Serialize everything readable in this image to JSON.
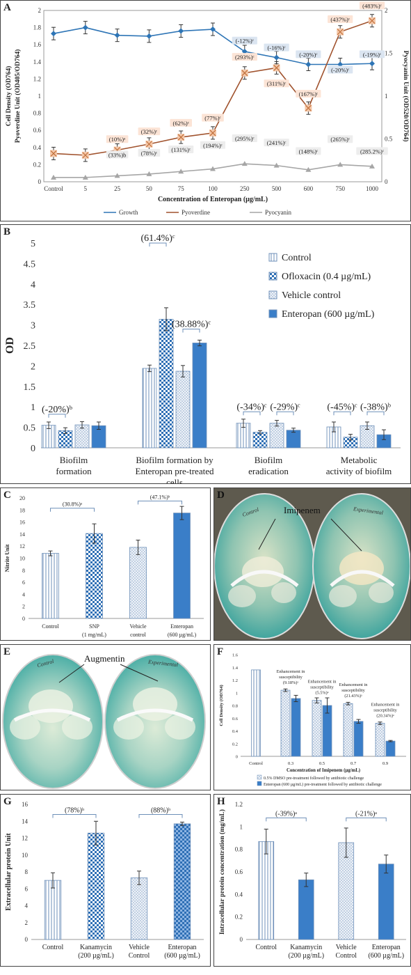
{
  "panels": {
    "A": {
      "label": "A",
      "chart_data": {
        "type": "line",
        "categories": [
          "Control",
          "5",
          "25",
          "50",
          "75",
          "100",
          "250",
          "500",
          "600",
          "750",
          "1000"
        ],
        "xlabel": "Concentration of Enteropan (µg/mL)",
        "ylabel_left_line1": "Cell Density (OD764)",
        "ylabel_left_line2": "Pyoverdine Unit (OD405/OD764)",
        "ylabel_right": "Pyocyanin Unit (OD520/OD764)",
        "ylim_left": [
          0,
          2
        ],
        "yticks_left": [
          "0",
          "0.2",
          "0.4",
          "0.6",
          "0.8",
          "1",
          "1.2",
          "1.4",
          "1.6",
          "1.8",
          "2"
        ],
        "ylim_right": [
          0,
          2
        ],
        "yticks_right": [
          {
            "label": "0",
            "v": 0
          },
          {
            "label": "0.5",
            "v": 0.5
          },
          {
            "label": "1",
            "v": 1
          },
          {
            "label": "1.5",
            "v": 1.5
          },
          {
            "label": "2",
            "v": 2
          }
        ],
        "series": [
          {
            "name": "Growth",
            "color": "#2e75b6",
            "marker": "diamond",
            "values": [
              1.73,
              1.8,
              1.71,
              1.7,
              1.76,
              1.78,
              1.52,
              1.45,
              1.37,
              1.37,
              1.38
            ]
          },
          {
            "name": "Pyoverdine",
            "color": "#a0522d",
            "marker": "x",
            "values": [
              0.33,
              0.31,
              0.37,
              0.44,
              0.52,
              0.57,
              1.27,
              1.33,
              0.86,
              1.75,
              1.88
            ]
          },
          {
            "name": "Pyocyanin",
            "color": "#a6a6a6",
            "marker": "triangle",
            "values": [
              0.05,
              0.05,
              0.07,
              0.09,
              0.12,
              0.15,
              0.21,
              0.19,
              0.14,
              0.2,
              0.18
            ]
          }
        ],
        "legend": [
          "Growth",
          "Pyoverdine",
          "Pyocyanin"
        ],
        "annotations": [
          {
            "text": "(-12%)ᶜ",
            "x": 6,
            "y": 1.62,
            "box": "#dbe5f1"
          },
          {
            "text": "(-16%)ᶜ",
            "x": 7,
            "y": 1.54,
            "box": "#dbe5f1"
          },
          {
            "text": "(-20%)ᶜ",
            "x": 8,
            "y": 1.46,
            "box": "#dbe5f1"
          },
          {
            "text": "(-20%)ᶜ",
            "x": 9,
            "y": 1.28,
            "box": "#dbe5f1"
          },
          {
            "text": "(-19%)ᶜ",
            "x": 10,
            "y": 1.46,
            "box": "#dbe5f1"
          },
          {
            "text": "(10%)ᵃ",
            "x": 2,
            "y": 0.47,
            "box": "#fce4d6"
          },
          {
            "text": "(32%)ᶜ",
            "x": 3,
            "y": 0.56,
            "box": "#fce4d6"
          },
          {
            "text": "(62%)ᶜ",
            "x": 4,
            "y": 0.66,
            "box": "#fce4d6"
          },
          {
            "text": "(77%)ᶜ",
            "x": 5,
            "y": 0.72,
            "box": "#fce4d6"
          },
          {
            "text": "(293%)ᶜ",
            "x": 6,
            "y": 1.43,
            "box": "#fce4d6"
          },
          {
            "text": "(311%)ᶜ",
            "x": 7,
            "y": 1.12,
            "box": "#fce4d6"
          },
          {
            "text": "(167%)ᶜ",
            "x": 8,
            "y": 1.0,
            "box": "#fce4d6"
          },
          {
            "text": "(437%)ᶜ",
            "x": 9,
            "y": 1.87,
            "box": "#fce4d6"
          },
          {
            "text": "(483%)ᶜ",
            "x": 10,
            "y": 2.03,
            "box": "#fce4d6"
          },
          {
            "text": "(33%)b",
            "x": 2,
            "y": 0.29,
            "box": "#ededed"
          },
          {
            "text": "(78%)ᶜ",
            "x": 3,
            "y": 0.31,
            "box": "#ededed"
          },
          {
            "text": "(131%)ᶜ",
            "x": 4,
            "y": 0.35,
            "box": "#ededed"
          },
          {
            "text": "(194%)ᶜ",
            "x": 5,
            "y": 0.4,
            "box": "#ededed"
          },
          {
            "text": "(295%)ᶜ",
            "x": 6,
            "y": 0.48,
            "box": "#ededed"
          },
          {
            "text": "(241%)ᶜ",
            "x": 7,
            "y": 0.43,
            "box": "#ededed"
          },
          {
            "text": "(148%)ᶜ",
            "x": 8,
            "y": 0.33,
            "box": "#ededed"
          },
          {
            "text": "(265%)ᶜ",
            "x": 9,
            "y": 0.47,
            "box": "#ededed"
          },
          {
            "text": "(285.2%)ᶜ",
            "x": 10,
            "y": 0.33,
            "box": "#ededed"
          }
        ]
      }
    },
    "B": {
      "label": "B",
      "chart_data": {
        "type": "bar",
        "ylabel": "OD",
        "ylim": [
          0,
          5
        ],
        "yticks": [
          "0",
          "0.5",
          "1",
          "1.5",
          "2",
          "2.5",
          "3",
          "3.5",
          "4",
          "4.5",
          "5"
        ],
        "groups": [
          {
            "label_lines": [
              "Biofilm",
              "formation"
            ]
          },
          {
            "label_lines": [
              "Biofilm formation by",
              "Enteropan pre-treated",
              "cells"
            ]
          },
          {
            "label_lines": [
              "Biofilm",
              "eradication"
            ]
          },
          {
            "label_lines": [
              "Metabolic",
              "activity of biofilm"
            ]
          }
        ],
        "series": [
          {
            "name": "Control",
            "pattern": "vlines",
            "values": [
              0.55,
              1.94,
              0.6,
              0.51
            ],
            "errors": [
              0.08,
              0.08,
              0.1,
              0.12
            ]
          },
          {
            "name": "Ofloxacin (0.4 µg/mL)",
            "pattern": "check",
            "values": [
              0.42,
              3.14,
              0.38,
              0.26
            ],
            "errors": [
              0.07,
              0.28,
              0.04,
              0.07
            ]
          },
          {
            "name": "Vehicle control",
            "pattern": "dots",
            "values": [
              0.56,
              1.87,
              0.6,
              0.54
            ],
            "errors": [
              0.08,
              0.14,
              0.07,
              0.09
            ]
          },
          {
            "name": "Enteropan (600 µg/mL)",
            "pattern": "solid",
            "values": [
              0.54,
              2.56,
              0.43,
              0.32
            ],
            "errors": [
              0.09,
              0.07,
              0.05,
              0.12
            ]
          }
        ],
        "annotations": [
          {
            "text": "(-20%)ᵇ",
            "x": 0,
            "pair": [
              0,
              1
            ],
            "y": 0.82
          },
          {
            "text": "(61.4%)ᶜ",
            "x": 1,
            "pair": [
              0,
              1
            ],
            "y": 5.0
          },
          {
            "text": "(38.88%)ᶜ",
            "x": 1,
            "pair": [
              2,
              3
            ],
            "y": 2.9
          },
          {
            "text": "(-34%)ᶜ",
            "x": 2,
            "pair": [
              0,
              1
            ],
            "y": 0.88
          },
          {
            "text": "(-29%)ᶜ",
            "x": 2,
            "pair": [
              2,
              3
            ],
            "y": 0.88
          },
          {
            "text": "(-45%)ᶜ",
            "x": 3,
            "pair": [
              0,
              1
            ],
            "y": 0.88
          },
          {
            "text": "(-38%)ᵇ",
            "x": 3,
            "pair": [
              2,
              3
            ],
            "y": 0.88
          }
        ]
      }
    },
    "C": {
      "label": "C",
      "chart_data": {
        "type": "bar",
        "ylabel": "Nitrite Unit",
        "ylim": [
          0,
          20
        ],
        "yticks": [
          "0",
          "2",
          "4",
          "6",
          "8",
          "10",
          "12",
          "14",
          "16",
          "18",
          "20"
        ],
        "categories": [
          [
            "Control"
          ],
          [
            "SNP",
            "(1 mg/mL)"
          ],
          [
            "Vehicle",
            "control"
          ],
          [
            "Enteropan",
            "(600 µg/mL)"
          ]
        ],
        "patterns": [
          "vlines",
          "check",
          "dots",
          "solid"
        ],
        "values": [
          10.8,
          14.1,
          11.8,
          17.5
        ],
        "errors": [
          0.4,
          1.6,
          1.2,
          1.1
        ],
        "annotations": [
          {
            "text": "(30.8%)ᵃ",
            "pair": [
              0,
              1
            ],
            "y": 18.3
          },
          {
            "text": "(47.1%)ᵇ",
            "pair": [
              2,
              3
            ],
            "y": 19.5
          }
        ]
      }
    },
    "D": {
      "label": "D",
      "callout": "Imipenem",
      "plate_left": "Control",
      "plate_right": "Experimental"
    },
    "E": {
      "label": "E",
      "callout": "Augmentin",
      "plate_left": "Control",
      "plate_right": "Experimental"
    },
    "F": {
      "label": "F",
      "chart_data": {
        "type": "bar",
        "ylabel": "Cell Density (OD764)",
        "xlabel": "Concentration of Imipenem (µg/mL)",
        "ylim": [
          0,
          1.6
        ],
        "yticks": [
          "0",
          "0.2",
          "0.4",
          "0.6",
          "0.8",
          "1",
          "1.2",
          "1.4",
          "1.6"
        ],
        "control": {
          "label": "Control",
          "value": 1.36
        },
        "categories": [
          "0.3",
          "0.5",
          "0.7",
          "0.9"
        ],
        "series": [
          {
            "name": "0.5% DMSO pre-treatment followed by antibiotic challenge",
            "pattern": "dots",
            "values": [
              1.04,
              0.88,
              0.83,
              0.52
            ],
            "errors": [
              0.02,
              0.04,
              0.02,
              0.02
            ]
          },
          {
            "name": "Enteropan (600 µg/mL) pre-treatment followed by antibiotic challenge",
            "pattern": "solid",
            "values": [
              0.91,
              0.8,
              0.55,
              0.24
            ],
            "errors": [
              0.05,
              0.12,
              0.03,
              0.01
            ]
          }
        ],
        "annotations": [
          {
            "lines": [
              "Enhancement in",
              "susceptibility",
              "(9.18%)ᵃ"
            ]
          },
          {
            "lines": [
              "Enhancement in",
              "susceptibility",
              "(5.5%)ᵃ"
            ]
          },
          {
            "lines": [
              "Enhancement in",
              "susceptibility",
              "(21.43%)ᵃ"
            ]
          },
          {
            "lines": [
              "Enhancement in",
              "susceptibility",
              "(20.34%)ᵃ"
            ]
          }
        ]
      }
    },
    "G": {
      "label": "G",
      "chart_data": {
        "type": "bar",
        "ylabel": "Extracellular protein Unit",
        "ylim": [
          0,
          16
        ],
        "yticks": [
          "0",
          "2",
          "4",
          "6",
          "8",
          "10",
          "12",
          "14",
          "16"
        ],
        "categories": [
          [
            "Control"
          ],
          [
            "Kanamycin",
            "(200 µg/mL)"
          ],
          [
            "Vehicle",
            "Control"
          ],
          [
            "Enteropan",
            "(600 µg/mL)"
          ]
        ],
        "patterns": [
          "vlines",
          "check",
          "dots",
          "check-blue"
        ],
        "values": [
          7.0,
          12.6,
          7.3,
          13.7
        ],
        "errors": [
          0.9,
          1.4,
          0.8,
          0.2
        ],
        "annotations": [
          {
            "text": "(78%)ᵇ",
            "pair": [
              0,
              1
            ],
            "y": 14.8
          },
          {
            "text": "(88%)ᵇ",
            "pair": [
              2,
              3
            ],
            "y": 14.8
          }
        ]
      }
    },
    "H": {
      "label": "H",
      "chart_data": {
        "type": "bar",
        "ylabel": "Intracellular protein concentration (mg/mL)",
        "ylim": [
          0,
          1.2
        ],
        "yticks": [
          "0",
          "0.2",
          "0.4",
          "0.6",
          "0.8",
          "1",
          "1.2"
        ],
        "categories": [
          [
            "Control"
          ],
          [
            "Kanamycin",
            "(200 µg/mL)"
          ],
          [
            "Vehicle",
            "Control"
          ],
          [
            "Enteropan",
            "(600 µg/mL)"
          ]
        ],
        "patterns": [
          "vlines",
          "solid",
          "dots",
          "solid"
        ],
        "values": [
          0.87,
          0.53,
          0.86,
          0.67
        ],
        "errors": [
          0.11,
          0.06,
          0.13,
          0.08
        ],
        "annotations": [
          {
            "text": "(-39%)ᵃ",
            "pair": [
              0,
              1
            ],
            "y": 1.08
          },
          {
            "text": "(-21%)ᵃ",
            "pair": [
              2,
              3
            ],
            "y": 1.08
          }
        ]
      }
    }
  }
}
